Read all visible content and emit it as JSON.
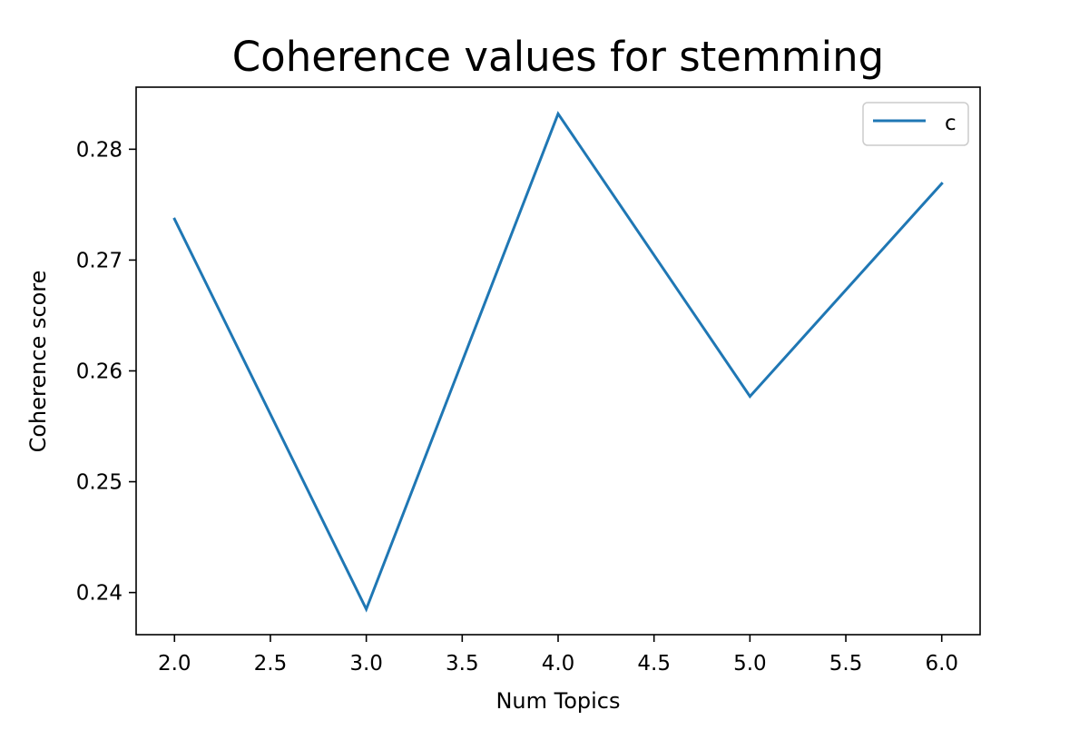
{
  "chart_data": {
    "type": "line",
    "title": "Coherence values for stemming",
    "xlabel": "Num Topics",
    "ylabel": "Coherence score",
    "x": [
      2.0,
      3.0,
      4.0,
      5.0,
      6.0
    ],
    "series": [
      {
        "name": "c",
        "color": "#1f77b4",
        "values": [
          0.2737,
          0.2385,
          0.2832,
          0.2577,
          0.2769
        ]
      }
    ],
    "xlim": [
      1.8,
      6.2
    ],
    "ylim": [
      0.2362,
      0.2856
    ],
    "x_ticks": [
      2.0,
      2.5,
      3.0,
      3.5,
      4.0,
      4.5,
      5.0,
      5.5,
      6.0
    ],
    "x_tick_labels": [
      "2.0",
      "2.5",
      "3.0",
      "3.5",
      "4.0",
      "4.5",
      "5.0",
      "5.5",
      "6.0"
    ],
    "y_ticks": [
      0.24,
      0.25,
      0.26,
      0.27,
      0.28
    ],
    "y_tick_labels": [
      "0.24",
      "0.25",
      "0.26",
      "0.27",
      "0.28"
    ],
    "grid": false,
    "legend_position": "upper right"
  }
}
